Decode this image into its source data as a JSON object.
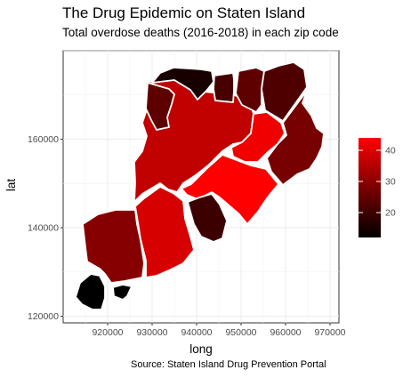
{
  "title": "The Drug Epidemic on Staten Island",
  "subtitle": "Total overdose deaths (2016-2018) in each zip code",
  "caption": "Source: Staten Island Drug Prevention Portal",
  "chart_data": {
    "type": "choropleth",
    "xlabel": "long",
    "ylabel": "lat",
    "xlim": [
      910000,
      972000
    ],
    "ylim": [
      118500,
      180000
    ],
    "x_ticks": [
      920000,
      930000,
      940000,
      950000,
      960000,
      970000
    ],
    "y_ticks": [
      120000,
      140000,
      160000
    ],
    "grid": true,
    "legend": {
      "position": "right",
      "range": [
        12,
        44
      ],
      "ticks": [
        20,
        30,
        40
      ],
      "colors": {
        "low": "#000000",
        "high": "#ff0000"
      }
    },
    "regions": [
      {
        "value": 35
      },
      {
        "value": 22
      },
      {
        "value": 44
      },
      {
        "value": 38
      },
      {
        "value": 42
      },
      {
        "value": 18
      },
      {
        "value": 25
      },
      {
        "value": 14
      },
      {
        "value": 19
      },
      {
        "value": 22
      },
      {
        "value": 27
      },
      {
        "value": 20
      },
      {
        "value": 12
      },
      {
        "value": 12
      }
    ]
  }
}
